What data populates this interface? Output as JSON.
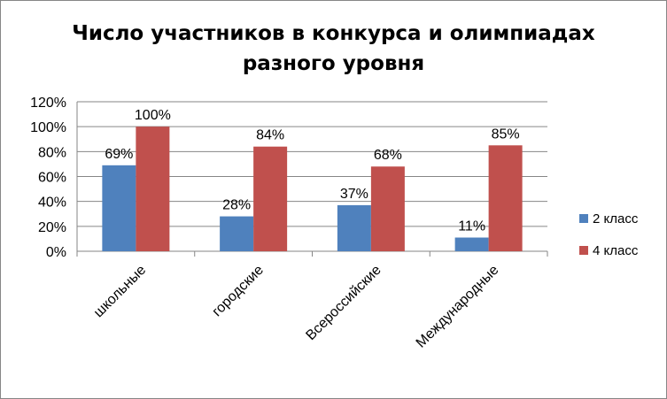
{
  "chart_data": {
    "type": "bar",
    "title_lines": [
      "Число участников в конкурса и олимпиадах",
      "разного уровня"
    ],
    "categories": [
      "школьные",
      "городские",
      "Всероссийские",
      "Международные"
    ],
    "series": [
      {
        "name": "2 класс",
        "values": [
          69,
          28,
          37,
          11
        ],
        "labels": [
          "69%",
          "28%",
          "37%",
          "11%"
        ],
        "color": "#4F81BD"
      },
      {
        "name": "4 класс",
        "values": [
          100,
          84,
          68,
          85
        ],
        "labels": [
          "100%",
          "84%",
          "68%",
          "85%"
        ],
        "color": "#C0504D"
      }
    ],
    "ylim": [
      0,
      120
    ],
    "yticks": [
      0,
      20,
      40,
      60,
      80,
      100,
      120
    ],
    "ytick_labels": [
      "0%",
      "20%",
      "40%",
      "60%",
      "80%",
      "100%",
      "120%"
    ],
    "xlabel": "",
    "ylabel": "",
    "grid": true,
    "legend_position": "right",
    "gridline_color": "#868686"
  }
}
